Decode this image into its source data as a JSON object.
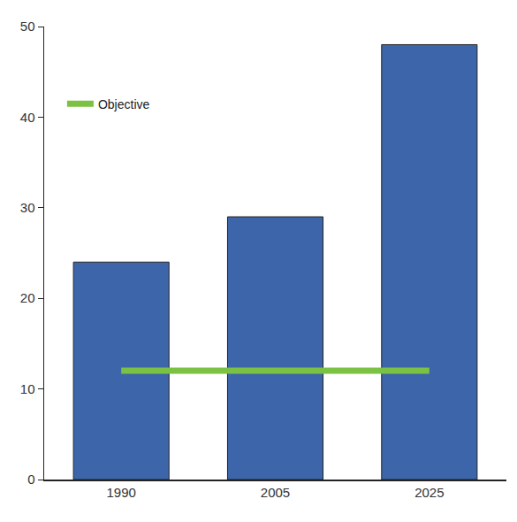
{
  "chart_data": {
    "type": "bar",
    "categories": [
      "1990",
      "2005",
      "2025"
    ],
    "values": [
      24,
      29,
      48
    ],
    "color": "#3d66aa",
    "series": [
      {
        "name": "Objective",
        "type": "line",
        "color": "#7bc143",
        "values": [
          12,
          12,
          12
        ]
      }
    ],
    "ylim": [
      0,
      50
    ],
    "yticks": [
      0,
      10,
      20,
      30,
      40,
      50
    ],
    "grid": false,
    "legend": "top-left"
  }
}
